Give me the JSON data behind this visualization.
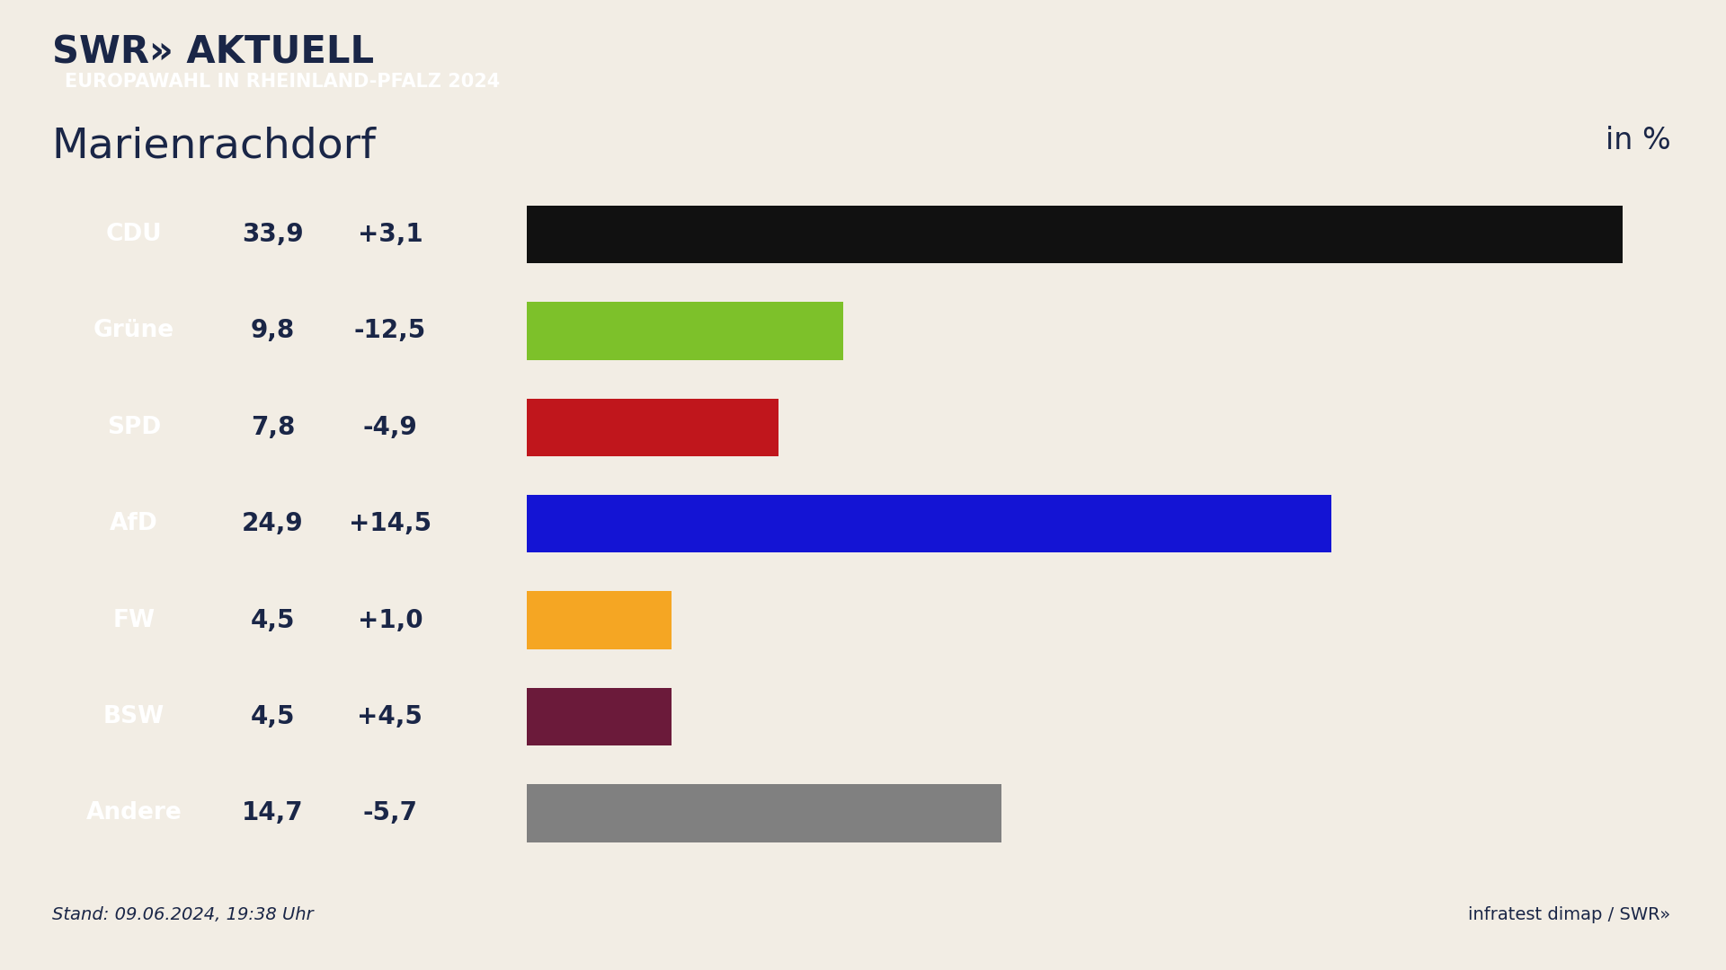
{
  "title_logo": "SWR» AKTUELL",
  "subtitle_badge": "EUROPAWAHL IN RHEINLAND-PFALZ 2024",
  "location": "Marienrachdorf",
  "unit_label": "in %",
  "stand": "Stand: 09.06.2024, 19:38 Uhr",
  "footer_right": "infratest dimap / SWR»",
  "background_color": "#f2ede4",
  "badge_color": "#e84b2e",
  "dark_blue": "#1a2647",
  "parties": [
    "CDU",
    "Grüne",
    "SPD",
    "AfD",
    "FW",
    "BSW",
    "Andere"
  ],
  "values": [
    33.9,
    9.8,
    7.8,
    24.9,
    4.5,
    4.5,
    14.7
  ],
  "changes": [
    "+3,1",
    "-12,5",
    "-4,9",
    "+14,5",
    "+1,0",
    "+4,5",
    "-5,7"
  ],
  "bar_colors": [
    "#111111",
    "#7dc12a",
    "#c0161c",
    "#1414d4",
    "#f5a623",
    "#6b1a3a",
    "#808080"
  ],
  "max_value": 35.5,
  "label_box_color": "#1a2647",
  "label_text_color": "#ffffff",
  "value_box_color": "#ffffff",
  "value_text_color": "#1a2647"
}
